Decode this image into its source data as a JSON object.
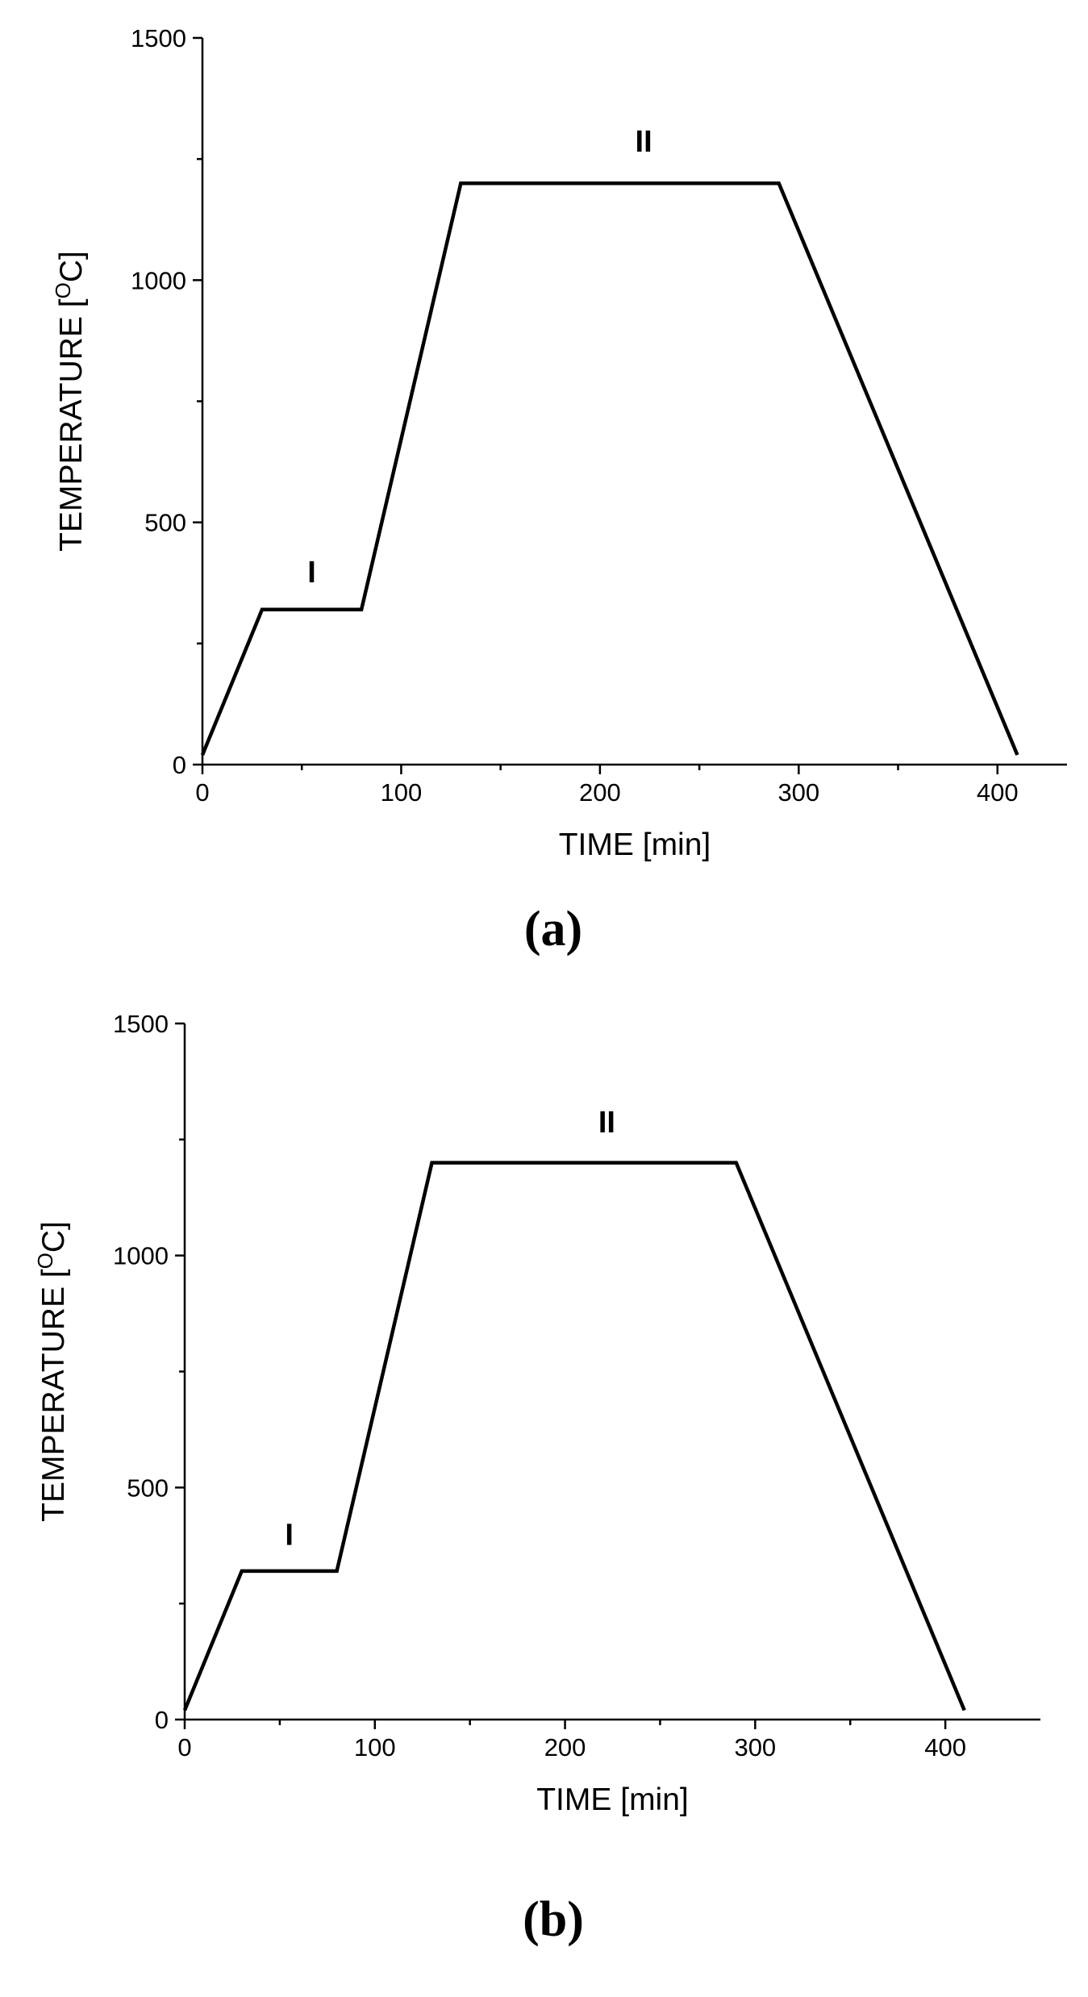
{
  "chart_data": [
    {
      "type": "line",
      "title": "(a)",
      "x_label": "TIME [min]",
      "y_label": {
        "text": "TEMPERATURE [",
        "sup": "O",
        "end": "C]"
      },
      "x": [
        0,
        30,
        80,
        130,
        290,
        410
      ],
      "values": [
        20,
        320,
        320,
        1200,
        1200,
        20
      ],
      "color": "#000000",
      "xlim": [
        0,
        435
      ],
      "xticks": [
        0,
        100,
        200,
        300,
        400
      ],
      "minor_xticks": [
        50,
        150,
        250,
        350
      ],
      "ylim": [
        0,
        1500
      ],
      "yticks": [
        0,
        500,
        1000,
        1500
      ],
      "minor_yticks": [
        250,
        750,
        1250
      ],
      "annotations": [
        "I",
        "II"
      ]
    },
    {
      "type": "line",
      "title": "(b)",
      "x_label": "TIME [min]",
      "y_label": {
        "text": "TEMPERATURE [",
        "sup": "O",
        "end": "C]"
      },
      "x": [
        0,
        30,
        80,
        130,
        290,
        410
      ],
      "values": [
        20,
        320,
        320,
        1200,
        1200,
        20
      ],
      "color": "#000000",
      "xlim": [
        0,
        450
      ],
      "xticks": [
        0,
        100,
        200,
        300,
        400
      ],
      "minor_xticks": [
        50,
        150,
        250,
        350
      ],
      "ylim": [
        0,
        1500
      ],
      "yticks": [
        0,
        500,
        1000,
        1500
      ],
      "minor_yticks": [
        250,
        750,
        1250
      ],
      "annotations": [
        "I",
        "II"
      ]
    }
  ]
}
